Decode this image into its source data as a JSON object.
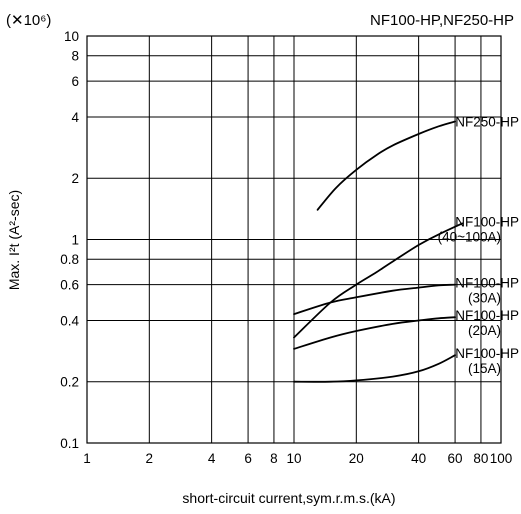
{
  "chart_data": {
    "type": "line",
    "title": "NF100-HP,NF250-HP",
    "multiplier": "(✕10⁶)",
    "xlabel": "short-circuit current,sym.r.m.s.(kA)",
    "ylabel": "Max. I²t (A²-sec)",
    "x_scale": "log",
    "y_scale": "log",
    "xlim": [
      1,
      100
    ],
    "ylim": [
      0.1,
      10
    ],
    "grid": true,
    "x_grid_values": [
      1,
      2,
      4,
      6,
      8,
      10,
      20,
      40,
      60,
      80,
      100
    ],
    "y_grid_values": [
      0.1,
      0.2,
      0.4,
      0.6,
      0.8,
      1,
      2,
      4,
      6,
      8,
      10
    ],
    "x_tick_labels": [
      {
        "value": 1,
        "label": "1"
      },
      {
        "value": 2,
        "label": "2"
      },
      {
        "value": 4,
        "label": "4"
      },
      {
        "value": 6,
        "label": "6"
      },
      {
        "value": 8,
        "label": "8"
      },
      {
        "value": 10,
        "label": "10"
      },
      {
        "value": 20,
        "label": "20"
      },
      {
        "value": 40,
        "label": "40"
      },
      {
        "value": 60,
        "label": "60"
      },
      {
        "value": 80,
        "label": "80"
      },
      {
        "value": 100,
        "label": "100"
      }
    ],
    "y_tick_labels": [
      {
        "value": 0.1,
        "label": "0.1"
      },
      {
        "value": 0.2,
        "label": "0.2"
      },
      {
        "value": 0.4,
        "label": "0.4"
      },
      {
        "value": 0.6,
        "label": "0.6"
      },
      {
        "value": 0.8,
        "label": "0.8"
      },
      {
        "value": 1,
        "label": "1"
      },
      {
        "value": 2,
        "label": "2"
      },
      {
        "value": 4,
        "label": "4"
      },
      {
        "value": 6,
        "label": "6"
      },
      {
        "value": 8,
        "label": "8"
      },
      {
        "value": 10,
        "label": "10"
      }
    ],
    "series": [
      {
        "name": "NF250-HP",
        "label_lines": [
          "NF250-HP"
        ],
        "x": [
          13,
          16,
          20,
          25,
          30,
          40,
          50,
          60
        ],
        "y": [
          1.4,
          1.8,
          2.2,
          2.6,
          2.9,
          3.3,
          3.6,
          3.8
        ]
      },
      {
        "name": "NF100-HP (40~100A)",
        "label_lines": [
          "NF100-HP",
          "(40~100A)"
        ],
        "x": [
          10,
          15,
          20,
          25,
          30,
          40,
          50,
          65
        ],
        "y": [
          0.33,
          0.49,
          0.6,
          0.69,
          0.78,
          0.94,
          1.06,
          1.2
        ]
      },
      {
        "name": "NF100-HP (30A)",
        "label_lines": [
          "NF100-HP",
          "(30A)"
        ],
        "x": [
          10,
          15,
          20,
          30,
          40,
          50,
          60
        ],
        "y": [
          0.43,
          0.49,
          0.52,
          0.56,
          0.58,
          0.595,
          0.6
        ]
      },
      {
        "name": "NF100-HP (20A)",
        "label_lines": [
          "NF100-HP",
          "(20A)"
        ],
        "x": [
          10,
          15,
          20,
          30,
          40,
          50,
          60
        ],
        "y": [
          0.29,
          0.33,
          0.355,
          0.385,
          0.4,
          0.41,
          0.415
        ]
      },
      {
        "name": "NF100-HP (15A)",
        "label_lines": [
          "NF100-HP",
          "(15A)"
        ],
        "x": [
          10,
          15,
          20,
          30,
          40,
          50,
          60
        ],
        "y": [
          0.2,
          0.2,
          0.203,
          0.212,
          0.225,
          0.245,
          0.27
        ]
      }
    ]
  }
}
